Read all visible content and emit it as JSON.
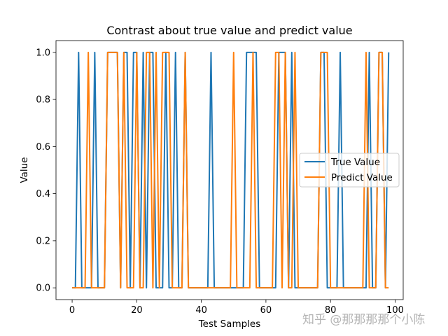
{
  "chart_data": {
    "type": "line",
    "title": "Contrast about true value and predict value",
    "xlabel": "Test Samples",
    "ylabel": "Value",
    "xlim": [
      -5,
      102.5
    ],
    "ylim": [
      -0.05,
      1.05
    ],
    "xticks": [
      0,
      20,
      40,
      60,
      80,
      100
    ],
    "yticks": [
      0.0,
      0.2,
      0.4,
      0.6,
      0.8,
      1.0
    ],
    "xtick_labels": [
      "0",
      "20",
      "40",
      "60",
      "80",
      "100"
    ],
    "ytick_labels": [
      "0.0",
      "0.2",
      "0.4",
      "0.6",
      "0.8",
      "1.0"
    ],
    "legend_position": "center-right",
    "grid": false,
    "series": [
      {
        "name": "True Value",
        "color": "#1f77b4",
        "values": [
          0,
          0,
          1,
          0,
          0,
          0,
          0,
          1,
          0,
          0,
          0,
          1,
          1,
          1,
          1,
          0,
          1,
          1,
          0,
          1,
          1,
          0,
          1,
          0,
          1,
          1,
          0,
          0,
          0,
          1,
          0,
          0,
          1,
          0,
          0,
          1,
          0,
          0,
          0,
          0,
          0,
          0,
          0,
          1,
          0,
          0,
          0,
          0,
          0,
          0,
          0,
          0,
          0,
          0,
          1,
          1,
          1,
          1,
          0,
          0,
          0,
          0,
          0,
          0,
          1,
          1,
          1,
          0,
          1,
          0,
          0,
          0,
          0,
          0,
          0,
          0,
          0,
          1,
          1,
          0,
          0,
          0,
          0,
          1,
          0,
          0,
          0,
          0,
          0,
          0,
          0,
          0,
          1,
          0,
          0,
          1,
          1,
          0,
          1
        ]
      },
      {
        "name": "Predict Value",
        "color": "#ff7f0e",
        "values": [
          0,
          0,
          0,
          0,
          0,
          1,
          0,
          0,
          0,
          0,
          0,
          1,
          1,
          1,
          1,
          0,
          1,
          0,
          0,
          0,
          1,
          0,
          0,
          1,
          1,
          0,
          1,
          0,
          1,
          1,
          1,
          0,
          0,
          0,
          0,
          1,
          0,
          0,
          0,
          0,
          0,
          0,
          0,
          0,
          0,
          0,
          0,
          0,
          0,
          0,
          1,
          0,
          0,
          0,
          0,
          0,
          1,
          0,
          0,
          0,
          0,
          0,
          0,
          1,
          1,
          0,
          1,
          0,
          0,
          1,
          0,
          0,
          0,
          0,
          0,
          0,
          0,
          1,
          1,
          1,
          0,
          0,
          0,
          0,
          0,
          0,
          0,
          0,
          0,
          0,
          0,
          1,
          0,
          0,
          0,
          1,
          1,
          0,
          0
        ]
      }
    ]
  },
  "watermark": "知乎 @那那那那个小陈"
}
